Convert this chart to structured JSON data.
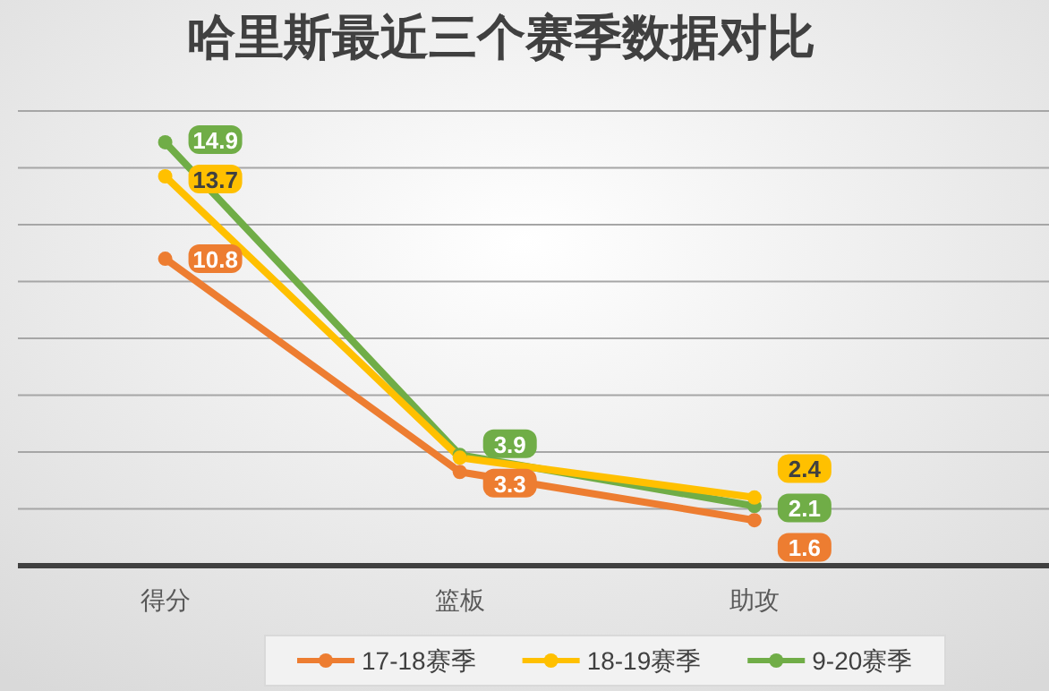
{
  "chart_data": {
    "type": "line",
    "title": "哈里斯最近三个赛季数据对比",
    "categories": [
      "得分",
      "篮板",
      "助攻"
    ],
    "series": [
      {
        "name": "17-18赛季",
        "color": "#ed7d31",
        "values": [
          10.8,
          3.3,
          1.6
        ],
        "value_labels": [
          "10.8",
          "3.3",
          "1.6"
        ]
      },
      {
        "name": "18-19赛季",
        "color": "#ffc000",
        "values": [
          13.7,
          3.8,
          2.4
        ],
        "value_labels": [
          "13.7",
          null,
          "2.4"
        ]
      },
      {
        "name": "9-20赛季",
        "color": "#70ad47",
        "values": [
          14.9,
          3.9,
          2.1
        ],
        "value_labels": [
          "14.9",
          "3.9",
          "2.1"
        ]
      }
    ],
    "ylim": [
      0,
      16
    ],
    "yticks": [
      {
        "value": 0,
        "label": null
      },
      {
        "value": 2,
        "label": null
      },
      {
        "value": 4,
        "label": null
      },
      {
        "value": 6,
        "label": null
      },
      {
        "value": 8,
        "label": null
      },
      {
        "value": 10,
        "label": null
      },
      {
        "value": 12,
        "label": null
      },
      {
        "value": 14,
        "label": null
      },
      {
        "value": 16,
        "label": null
      }
    ],
    "tick_labels": "x",
    "grid": "y",
    "legend": "bottom",
    "marker": "circle",
    "line_style": "solid"
  }
}
